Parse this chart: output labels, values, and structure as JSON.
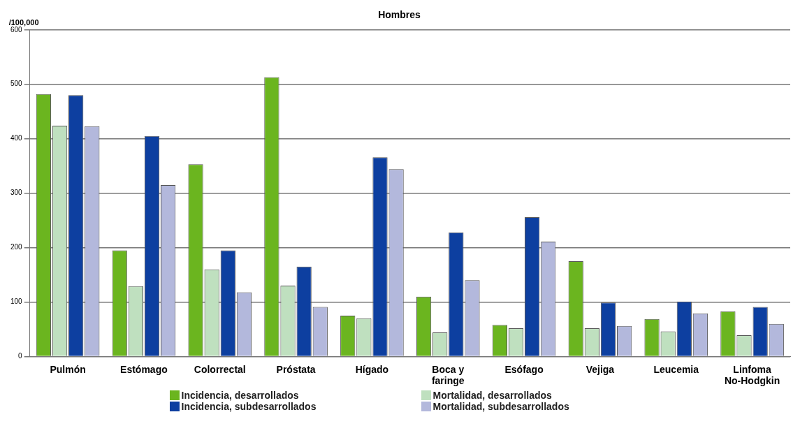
{
  "chart_data": {
    "type": "bar",
    "title": "Hombres",
    "ylabel": "/100,000",
    "categories": [
      "Pulmón",
      "Estómago",
      "Colorrectal",
      "Próstata",
      "Hígado",
      "Boca y\nfaringe",
      "Esófago",
      "Vejiga",
      "Leucemia",
      "Linfoma\nNo-Hodgkin"
    ],
    "series": [
      {
        "name": "Incidencia, desarrollados",
        "color": "#6bb51f",
        "values": [
          482,
          195,
          353,
          513,
          75,
          110,
          58,
          175,
          69,
          83
        ]
      },
      {
        "name": "Mortalidad, desarrollados",
        "color": "#bfe0bf",
        "values": [
          424,
          129,
          160,
          130,
          70,
          44,
          52,
          52,
          46,
          39
        ]
      },
      {
        "name": "Incidencia, subdesarrollados",
        "color": "#0d3fa0",
        "values": [
          480,
          405,
          195,
          165,
          366,
          228,
          256,
          99,
          101,
          91
        ]
      },
      {
        "name": "Mortalidad, subdesarrollados",
        "color": "#b3b8dc",
        "values": [
          423,
          315,
          118,
          91,
          344,
          140,
          211,
          56,
          79,
          60
        ]
      }
    ],
    "ylim": [
      0,
      600
    ],
    "yticks": [
      0,
      100,
      200,
      300,
      400,
      500,
      600
    ],
    "grid": "y",
    "legend": "bottom"
  }
}
